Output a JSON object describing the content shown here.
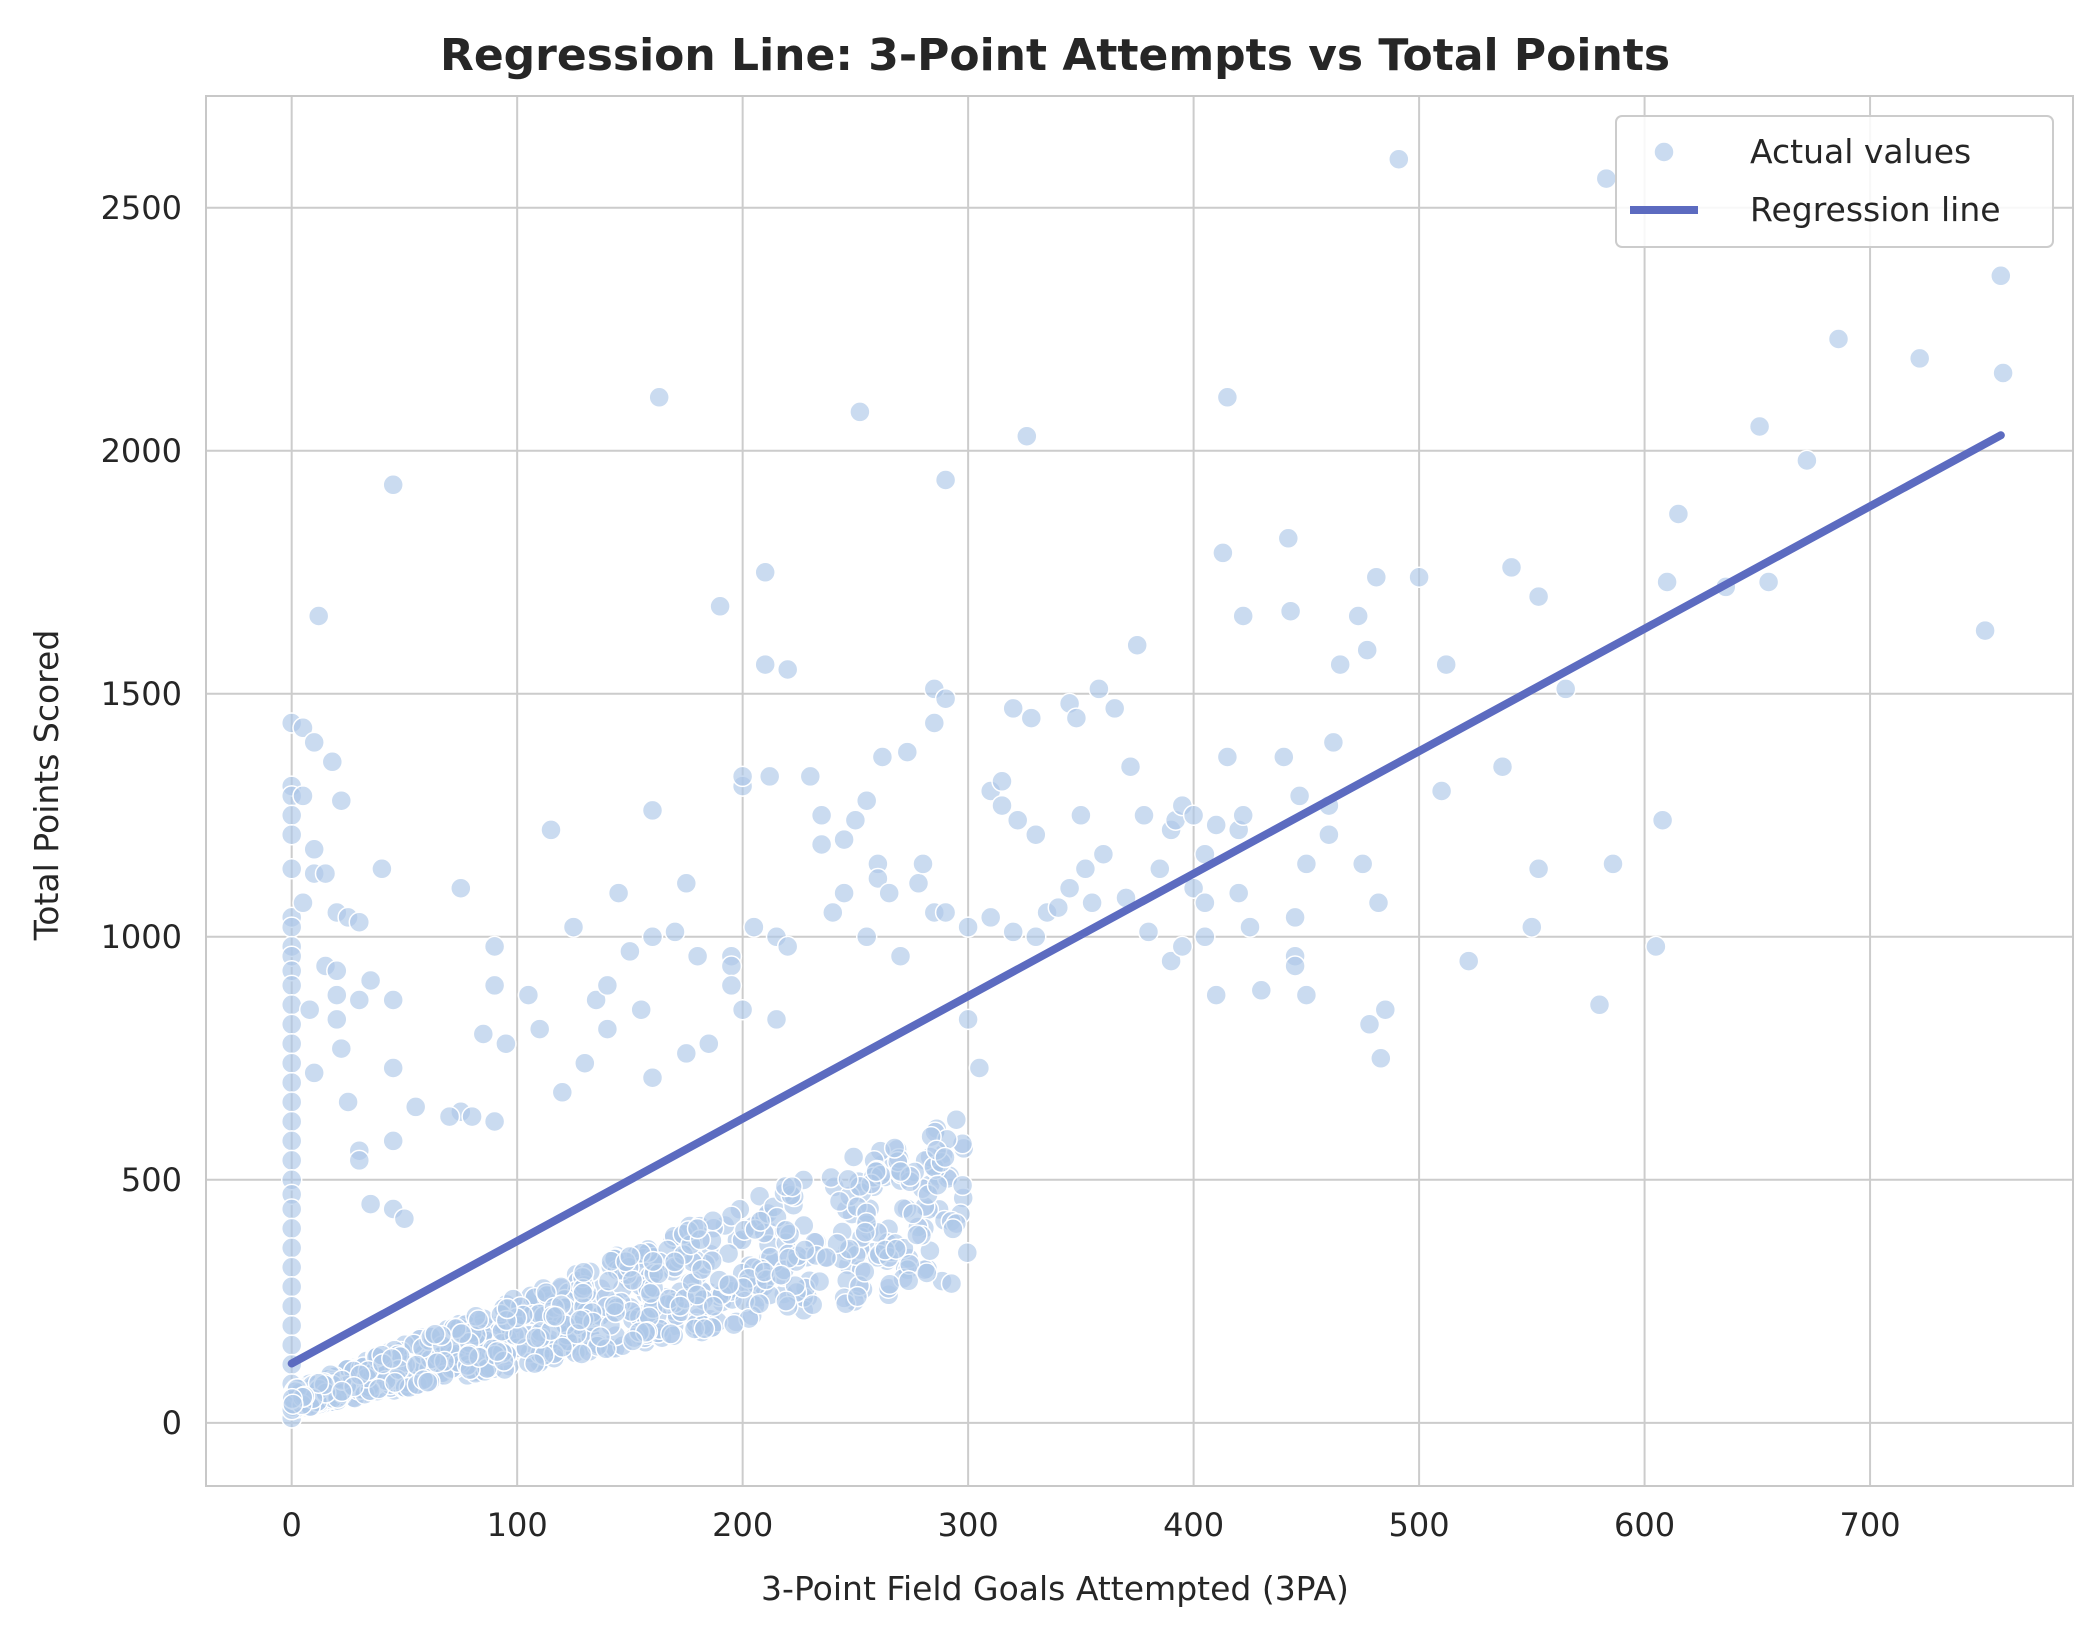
{
  "chart_data": {
    "type": "scatter",
    "title": "Regression Line: 3-Point Attempts vs Total Points",
    "xlabel": "3-Point Field Goals Attempted (3PA)",
    "ylabel": "Total Points Scored",
    "xlim": [
      -38,
      790
    ],
    "ylim": [
      -130,
      2730
    ],
    "xticks": [
      0,
      100,
      200,
      300,
      400,
      500,
      600,
      700
    ],
    "yticks": [
      0,
      500,
      1000,
      1500,
      2000,
      2500
    ],
    "grid": true,
    "legend_position": "top-right",
    "colors": {
      "points": "#aec7e8",
      "points_edge": "#ffffff",
      "line": "#5c6bc0",
      "grid": "#cccccc",
      "axes": "#c8c8c8"
    },
    "series": [
      {
        "name": "Actual values",
        "kind": "scatter",
        "points": [
          [
            0,
            1440
          ],
          [
            0,
            1310
          ],
          [
            0,
            1290
          ],
          [
            0,
            1250
          ],
          [
            0,
            1210
          ],
          [
            0,
            1140
          ],
          [
            0,
            1040
          ],
          [
            0,
            1020
          ],
          [
            0,
            980
          ],
          [
            0,
            960
          ],
          [
            0,
            930
          ],
          [
            0,
            900
          ],
          [
            0,
            860
          ],
          [
            0,
            820
          ],
          [
            0,
            780
          ],
          [
            0,
            740
          ],
          [
            0,
            700
          ],
          [
            0,
            660
          ],
          [
            0,
            620
          ],
          [
            0,
            580
          ],
          [
            0,
            540
          ],
          [
            0,
            500
          ],
          [
            0,
            470
          ],
          [
            0,
            440
          ],
          [
            0,
            400
          ],
          [
            0,
            360
          ],
          [
            0,
            320
          ],
          [
            0,
            280
          ],
          [
            0,
            240
          ],
          [
            0,
            200
          ],
          [
            0,
            160
          ],
          [
            0,
            120
          ],
          [
            0,
            80
          ],
          [
            0,
            40
          ],
          [
            0,
            10
          ],
          [
            5,
            1430
          ],
          [
            5,
            1290
          ],
          [
            5,
            1070
          ],
          [
            10,
            1400
          ],
          [
            10,
            1180
          ],
          [
            10,
            1130
          ],
          [
            12,
            1660
          ],
          [
            15,
            1130
          ],
          [
            18,
            1360
          ],
          [
            20,
            1050
          ],
          [
            22,
            1280
          ],
          [
            25,
            1040
          ],
          [
            15,
            940
          ],
          [
            20,
            930
          ],
          [
            20,
            880
          ],
          [
            20,
            830
          ],
          [
            8,
            850
          ],
          [
            22,
            770
          ],
          [
            10,
            720
          ],
          [
            25,
            660
          ],
          [
            30,
            1030
          ],
          [
            35,
            910
          ],
          [
            30,
            870
          ],
          [
            45,
            870
          ],
          [
            40,
            1140
          ],
          [
            45,
            1930
          ],
          [
            45,
            730
          ],
          [
            45,
            580
          ],
          [
            30,
            560
          ],
          [
            30,
            540
          ],
          [
            55,
            650
          ],
          [
            35,
            450
          ],
          [
            45,
            440
          ],
          [
            50,
            420
          ],
          [
            75,
            1100
          ],
          [
            75,
            640
          ],
          [
            80,
            630
          ],
          [
            85,
            800
          ],
          [
            90,
            900
          ],
          [
            90,
            980
          ],
          [
            95,
            780
          ],
          [
            70,
            630
          ],
          [
            90,
            620
          ],
          [
            105,
            880
          ],
          [
            110,
            810
          ],
          [
            115,
            1220
          ],
          [
            120,
            680
          ],
          [
            125,
            1020
          ],
          [
            130,
            740
          ],
          [
            135,
            870
          ],
          [
            140,
            900
          ],
          [
            145,
            1090
          ],
          [
            140,
            810
          ],
          [
            155,
            850
          ],
          [
            150,
            970
          ],
          [
            160,
            1000
          ],
          [
            160,
            710
          ],
          [
            160,
            1260
          ],
          [
            163,
            2110
          ],
          [
            170,
            1010
          ],
          [
            175,
            1110
          ],
          [
            175,
            760
          ],
          [
            180,
            960
          ],
          [
            185,
            780
          ],
          [
            190,
            1680
          ],
          [
            195,
            960
          ],
          [
            195,
            940
          ],
          [
            195,
            900
          ],
          [
            200,
            1310
          ],
          [
            200,
            1330
          ],
          [
            200,
            850
          ],
          [
            205,
            1020
          ],
          [
            210,
            1750
          ],
          [
            210,
            1560
          ],
          [
            212,
            1330
          ],
          [
            215,
            1000
          ],
          [
            215,
            830
          ],
          [
            220,
            1550
          ],
          [
            220,
            980
          ],
          [
            230,
            1330
          ],
          [
            235,
            1250
          ],
          [
            235,
            1190
          ],
          [
            240,
            1050
          ],
          [
            245,
            1200
          ],
          [
            245,
            1090
          ],
          [
            250,
            1240
          ],
          [
            252,
            2080
          ],
          [
            255,
            1280
          ],
          [
            255,
            1000
          ],
          [
            260,
            1150
          ],
          [
            260,
            1120
          ],
          [
            262,
            1370
          ],
          [
            265,
            1090
          ],
          [
            270,
            960
          ],
          [
            273,
            1380
          ],
          [
            278,
            1110
          ],
          [
            285,
            1510
          ],
          [
            285,
            1440
          ],
          [
            290,
            1490
          ],
          [
            290,
            1940
          ],
          [
            285,
            1050
          ],
          [
            280,
            1150
          ],
          [
            290,
            1050
          ],
          [
            300,
            1020
          ],
          [
            300,
            830
          ],
          [
            305,
            730
          ],
          [
            310,
            1040
          ],
          [
            310,
            1300
          ],
          [
            315,
            1320
          ],
          [
            315,
            1270
          ],
          [
            320,
            1470
          ],
          [
            320,
            1010
          ],
          [
            322,
            1240
          ],
          [
            326,
            2030
          ],
          [
            328,
            1450
          ],
          [
            330,
            1210
          ],
          [
            330,
            1000
          ],
          [
            335,
            1050
          ],
          [
            340,
            1060
          ],
          [
            345,
            1480
          ],
          [
            345,
            1100
          ],
          [
            348,
            1450
          ],
          [
            350,
            1250
          ],
          [
            352,
            1140
          ],
          [
            355,
            1070
          ],
          [
            358,
            1510
          ],
          [
            360,
            1170
          ],
          [
            365,
            1470
          ],
          [
            370,
            1080
          ],
          [
            372,
            1350
          ],
          [
            375,
            1600
          ],
          [
            378,
            1250
          ],
          [
            380,
            1010
          ],
          [
            385,
            1140
          ],
          [
            390,
            1220
          ],
          [
            390,
            950
          ],
          [
            392,
            1240
          ],
          [
            395,
            1270
          ],
          [
            395,
            980
          ],
          [
            400,
            1250
          ],
          [
            400,
            1100
          ],
          [
            405,
            1170
          ],
          [
            405,
            1070
          ],
          [
            405,
            1000
          ],
          [
            410,
            1230
          ],
          [
            410,
            880
          ],
          [
            413,
            1790
          ],
          [
            415,
            1370
          ],
          [
            415,
            2110
          ],
          [
            420,
            1220
          ],
          [
            420,
            1090
          ],
          [
            422,
            1660
          ],
          [
            422,
            1250
          ],
          [
            425,
            1020
          ],
          [
            430,
            890
          ],
          [
            440,
            1370
          ],
          [
            442,
            1820
          ],
          [
            443,
            1670
          ],
          [
            445,
            1040
          ],
          [
            445,
            960
          ],
          [
            445,
            940
          ],
          [
            447,
            1290
          ],
          [
            450,
            1150
          ],
          [
            450,
            880
          ],
          [
            460,
            1210
          ],
          [
            460,
            1270
          ],
          [
            462,
            1400
          ],
          [
            465,
            1560
          ],
          [
            473,
            1660
          ],
          [
            475,
            1150
          ],
          [
            477,
            1590
          ],
          [
            478,
            820
          ],
          [
            481,
            1740
          ],
          [
            482,
            1070
          ],
          [
            483,
            750
          ],
          [
            485,
            850
          ],
          [
            491,
            2600
          ],
          [
            500,
            1740
          ],
          [
            510,
            1300
          ],
          [
            512,
            1560
          ],
          [
            522,
            950
          ],
          [
            537,
            1350
          ],
          [
            541,
            1760
          ],
          [
            550,
            1020
          ],
          [
            553,
            1140
          ],
          [
            553,
            1700
          ],
          [
            565,
            1510
          ],
          [
            580,
            860
          ],
          [
            583,
            2560
          ],
          [
            586,
            1150
          ],
          [
            605,
            980
          ],
          [
            608,
            1240
          ],
          [
            610,
            1730
          ],
          [
            615,
            1870
          ],
          [
            636,
            1720
          ],
          [
            651,
            2050
          ],
          [
            655,
            1730
          ],
          [
            672,
            1980
          ],
          [
            686,
            2230
          ],
          [
            722,
            2190
          ],
          [
            751,
            1630
          ],
          [
            758,
            2360
          ],
          [
            759,
            2160
          ]
        ]
      },
      {
        "name": "Regression line",
        "kind": "line",
        "points": [
          [
            0,
            122
          ],
          [
            758,
            2032
          ]
        ]
      }
    ]
  }
}
